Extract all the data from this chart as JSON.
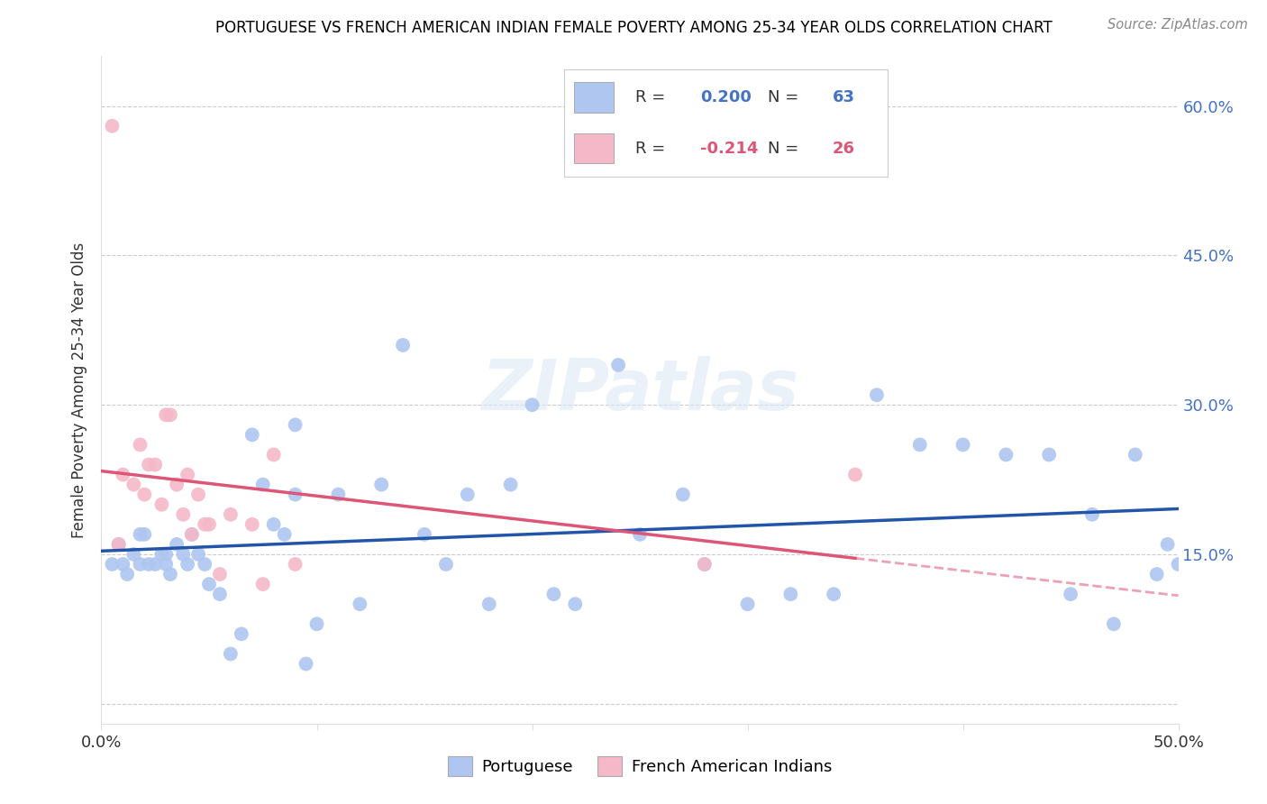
{
  "title": "PORTUGUESE VS FRENCH AMERICAN INDIAN FEMALE POVERTY AMONG 25-34 YEAR OLDS CORRELATION CHART",
  "source": "Source: ZipAtlas.com",
  "ylabel": "Female Poverty Among 25-34 Year Olds",
  "y_ticks": [
    0.0,
    0.15,
    0.3,
    0.45,
    0.6
  ],
  "y_tick_labels": [
    "",
    "15.0%",
    "30.0%",
    "45.0%",
    "60.0%"
  ],
  "xlim": [
    0.0,
    0.5
  ],
  "ylim": [
    -0.02,
    0.65
  ],
  "blue_color": "#aec6f0",
  "pink_color": "#f4b8c8",
  "blue_line_color": "#2255aa",
  "pink_line_color": "#dd5577",
  "watermark": "ZIPatlas",
  "portuguese_x": [
    0.005,
    0.008,
    0.01,
    0.012,
    0.015,
    0.018,
    0.02,
    0.022,
    0.025,
    0.028,
    0.03,
    0.032,
    0.035,
    0.038,
    0.04,
    0.042,
    0.045,
    0.048,
    0.05,
    0.055,
    0.06,
    0.065,
    0.07,
    0.075,
    0.08,
    0.085,
    0.09,
    0.095,
    0.1,
    0.11,
    0.12,
    0.13,
    0.14,
    0.15,
    0.16,
    0.17,
    0.18,
    0.19,
    0.2,
    0.21,
    0.22,
    0.24,
    0.25,
    0.27,
    0.28,
    0.3,
    0.32,
    0.34,
    0.36,
    0.38,
    0.4,
    0.42,
    0.44,
    0.45,
    0.46,
    0.47,
    0.48,
    0.49,
    0.495,
    0.5,
    0.018,
    0.03,
    0.09
  ],
  "portuguese_y": [
    0.14,
    0.16,
    0.14,
    0.13,
    0.15,
    0.14,
    0.17,
    0.14,
    0.14,
    0.15,
    0.14,
    0.13,
    0.16,
    0.15,
    0.14,
    0.17,
    0.15,
    0.14,
    0.12,
    0.11,
    0.05,
    0.07,
    0.27,
    0.22,
    0.18,
    0.17,
    0.21,
    0.04,
    0.08,
    0.21,
    0.1,
    0.22,
    0.36,
    0.17,
    0.14,
    0.21,
    0.1,
    0.22,
    0.3,
    0.11,
    0.1,
    0.34,
    0.17,
    0.21,
    0.14,
    0.1,
    0.11,
    0.11,
    0.31,
    0.26,
    0.26,
    0.25,
    0.25,
    0.11,
    0.19,
    0.08,
    0.25,
    0.13,
    0.16,
    0.14,
    0.17,
    0.15,
    0.28
  ],
  "french_x": [
    0.005,
    0.008,
    0.01,
    0.015,
    0.018,
    0.02,
    0.022,
    0.025,
    0.028,
    0.03,
    0.032,
    0.035,
    0.038,
    0.04,
    0.042,
    0.045,
    0.048,
    0.05,
    0.055,
    0.06,
    0.07,
    0.075,
    0.08,
    0.09,
    0.28,
    0.35
  ],
  "french_y": [
    0.58,
    0.16,
    0.23,
    0.22,
    0.26,
    0.21,
    0.24,
    0.24,
    0.2,
    0.29,
    0.29,
    0.22,
    0.19,
    0.23,
    0.17,
    0.21,
    0.18,
    0.18,
    0.13,
    0.19,
    0.18,
    0.12,
    0.25,
    0.14,
    0.14,
    0.23
  ],
  "blue_R": "0.200",
  "blue_N": "63",
  "pink_R": "-0.214",
  "pink_N": "26",
  "legend_label_blue": "Portuguese",
  "legend_label_pink": "French American Indians"
}
